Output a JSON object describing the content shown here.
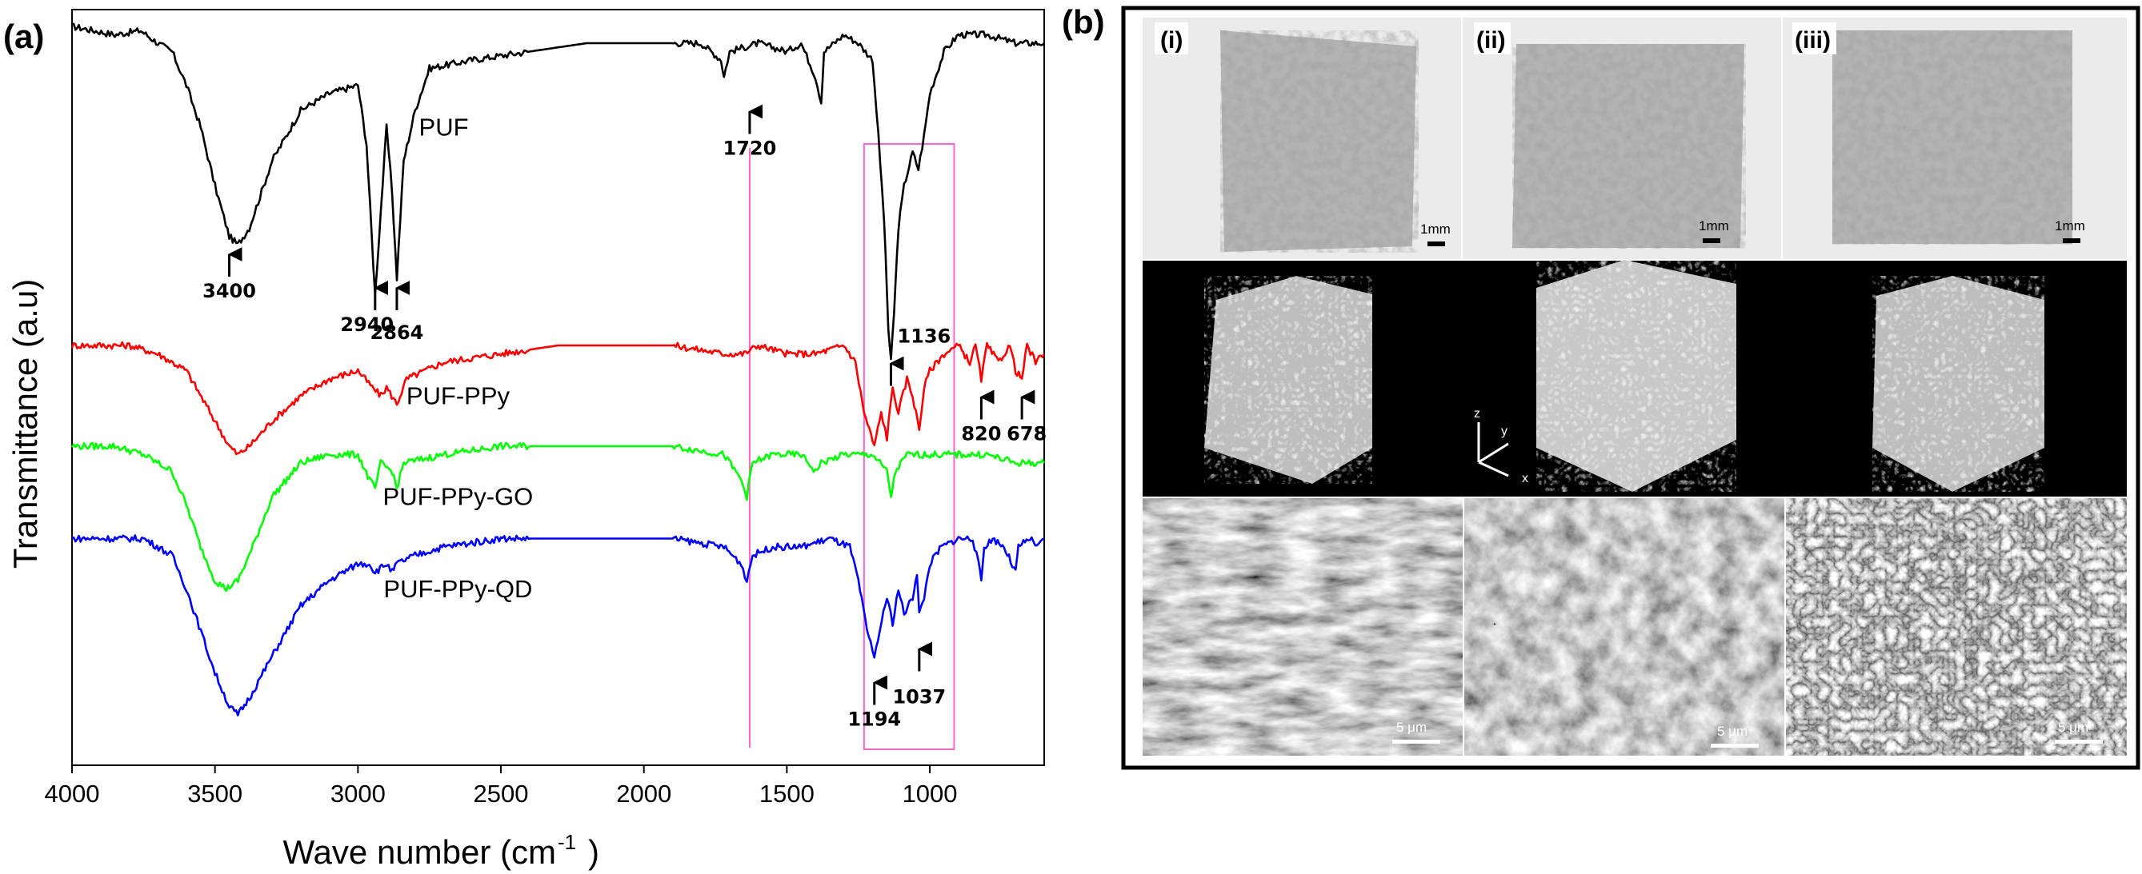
{
  "panel_a": {
    "label": "(a)",
    "chart_data": {
      "type": "line",
      "xlabel": "Wave number (cm",
      "xlabel_sup": "-1",
      "xlabel_close": ")",
      "ylabel": "Transmittance (a.u)",
      "xlim": [
        4000,
        600
      ],
      "x_ticks": [
        4000,
        3500,
        3000,
        2500,
        2000,
        1500,
        1000
      ],
      "y_ticks_shown": false,
      "series": [
        {
          "name": "PUF",
          "color": "#000000",
          "points": [
            [
              4000,
              98
            ],
            [
              3850,
              97
            ],
            [
              3760,
              97.5
            ],
            [
              3700,
              96
            ],
            [
              3650,
              95
            ],
            [
              3600,
              91
            ],
            [
              3550,
              86
            ],
            [
              3500,
              79
            ],
            [
              3450,
              73
            ],
            [
              3420,
              72
            ],
            [
              3380,
              74
            ],
            [
              3300,
              82
            ],
            [
              3200,
              88
            ],
            [
              3100,
              90
            ],
            [
              3000,
              91
            ],
            [
              2970,
              84
            ],
            [
              2940,
              66
            ],
            [
              2920,
              76
            ],
            [
              2900,
              86
            ],
            [
              2880,
              78
            ],
            [
              2864,
              68
            ],
            [
              2840,
              82
            ],
            [
              2800,
              88
            ],
            [
              2750,
              93
            ],
            [
              2600,
              94
            ],
            [
              2400,
              95
            ],
            [
              2200,
              96
            ],
            [
              2000,
              96
            ],
            [
              1800,
              96
            ],
            [
              1730,
              94
            ],
            [
              1720,
              92
            ],
            [
              1700,
              95
            ],
            [
              1600,
              96
            ],
            [
              1500,
              95
            ],
            [
              1450,
              96
            ],
            [
              1400,
              92
            ],
            [
              1380,
              89
            ],
            [
              1370,
              95
            ],
            [
              1300,
              97
            ],
            [
              1250,
              96
            ],
            [
              1200,
              94
            ],
            [
              1180,
              85
            ],
            [
              1160,
              75
            ],
            [
              1145,
              62
            ],
            [
              1136,
              58
            ],
            [
              1125,
              64
            ],
            [
              1110,
              74
            ],
            [
              1090,
              79
            ],
            [
              1060,
              83
            ],
            [
              1040,
              81
            ],
            [
              1020,
              85
            ],
            [
              1000,
              90
            ],
            [
              950,
              95
            ],
            [
              900,
              97
            ],
            [
              800,
              97
            ],
            [
              700,
              96
            ],
            [
              600,
              96
            ]
          ]
        },
        {
          "name": "PUF-PPy",
          "color": "#ff0000",
          "points": [
            [
              4000,
              60
            ],
            [
              3800,
              60
            ],
            [
              3700,
              59
            ],
            [
              3600,
              57
            ],
            [
              3500,
              51
            ],
            [
              3450,
              48
            ],
            [
              3420,
              47
            ],
            [
              3380,
              48
            ],
            [
              3300,
              51
            ],
            [
              3200,
              54
            ],
            [
              3100,
              56
            ],
            [
              3000,
              57
            ],
            [
              2950,
              55
            ],
            [
              2920,
              54
            ],
            [
              2900,
              55
            ],
            [
              2864,
              53
            ],
            [
              2830,
              56
            ],
            [
              2700,
              58
            ],
            [
              2500,
              59
            ],
            [
              2300,
              60
            ],
            [
              2100,
              60
            ],
            [
              1900,
              60
            ],
            [
              1720,
              59
            ],
            [
              1650,
              59
            ],
            [
              1600,
              60
            ],
            [
              1500,
              59
            ],
            [
              1400,
              59
            ],
            [
              1300,
              60
            ],
            [
              1260,
              58
            ],
            [
              1230,
              52
            ],
            [
              1194,
              48
            ],
            [
              1170,
              52
            ],
            [
              1150,
              49
            ],
            [
              1130,
              55
            ],
            [
              1110,
              52
            ],
            [
              1080,
              56
            ],
            [
              1060,
              54
            ],
            [
              1037,
              50
            ],
            [
              1020,
              55
            ],
            [
              1000,
              57
            ],
            [
              950,
              59
            ],
            [
              900,
              60
            ],
            [
              860,
              58
            ],
            [
              840,
              60
            ],
            [
              820,
              56
            ],
            [
              800,
              60
            ],
            [
              760,
              58
            ],
            [
              720,
              60
            ],
            [
              700,
              57
            ],
            [
              678,
              56
            ],
            [
              660,
              60
            ],
            [
              630,
              58
            ],
            [
              600,
              59
            ]
          ]
        },
        {
          "name": "PUF-PPy-GO",
          "color": "#00ff00",
          "points": [
            [
              4000,
              48
            ],
            [
              3850,
              48
            ],
            [
              3750,
              47
            ],
            [
              3650,
              45
            ],
            [
              3600,
              41
            ],
            [
              3550,
              36
            ],
            [
              3500,
              32
            ],
            [
              3460,
              31
            ],
            [
              3420,
              32
            ],
            [
              3380,
              35
            ],
            [
              3300,
              42
            ],
            [
              3200,
              46
            ],
            [
              3100,
              47
            ],
            [
              3000,
              47
            ],
            [
              2960,
              44
            ],
            [
              2940,
              43
            ],
            [
              2920,
              46
            ],
            [
              2880,
              45
            ],
            [
              2864,
              43
            ],
            [
              2840,
              46
            ],
            [
              2700,
              47
            ],
            [
              2500,
              48
            ],
            [
              2300,
              48
            ],
            [
              2100,
              48
            ],
            [
              1900,
              48
            ],
            [
              1720,
              47
            ],
            [
              1660,
              44
            ],
            [
              1640,
              42
            ],
            [
              1620,
              46
            ],
            [
              1550,
              47
            ],
            [
              1450,
              47
            ],
            [
              1400,
              45
            ],
            [
              1380,
              46
            ],
            [
              1300,
              47
            ],
            [
              1200,
              47
            ],
            [
              1150,
              45
            ],
            [
              1136,
              42
            ],
            [
              1120,
              45
            ],
            [
              1080,
              47
            ],
            [
              1000,
              47
            ],
            [
              900,
              47
            ],
            [
              800,
              47
            ],
            [
              700,
              46
            ],
            [
              600,
              46
            ]
          ]
        },
        {
          "name": "PUF-PPy-QD",
          "color": "#0000ff",
          "points": [
            [
              4000,
              37
            ],
            [
              3850,
              37
            ],
            [
              3750,
              37
            ],
            [
              3650,
              35
            ],
            [
              3600,
              31
            ],
            [
              3550,
              26
            ],
            [
              3500,
              21
            ],
            [
              3450,
              17
            ],
            [
              3420,
              16
            ],
            [
              3380,
              18
            ],
            [
              3300,
              23
            ],
            [
              3200,
              29
            ],
            [
              3100,
              32
            ],
            [
              3000,
              34
            ],
            [
              2960,
              34
            ],
            [
              2940,
              33
            ],
            [
              2900,
              34
            ],
            [
              2880,
              33
            ],
            [
              2864,
              34
            ],
            [
              2800,
              35
            ],
            [
              2700,
              36
            ],
            [
              2500,
              37
            ],
            [
              2300,
              37
            ],
            [
              2100,
              37
            ],
            [
              1900,
              37
            ],
            [
              1720,
              36
            ],
            [
              1660,
              34
            ],
            [
              1640,
              32
            ],
            [
              1620,
              35
            ],
            [
              1550,
              36
            ],
            [
              1450,
              36
            ],
            [
              1350,
              37
            ],
            [
              1280,
              36
            ],
            [
              1250,
              32
            ],
            [
              1220,
              26
            ],
            [
              1194,
              23
            ],
            [
              1175,
              26
            ],
            [
              1150,
              30
            ],
            [
              1130,
              27
            ],
            [
              1110,
              31
            ],
            [
              1090,
              28
            ],
            [
              1060,
              30
            ],
            [
              1045,
              33
            ],
            [
              1037,
              28
            ],
            [
              1020,
              30
            ],
            [
              1000,
              34
            ],
            [
              960,
              36
            ],
            [
              900,
              37
            ],
            [
              850,
              37
            ],
            [
              830,
              34
            ],
            [
              820,
              32
            ],
            [
              810,
              36
            ],
            [
              780,
              37
            ],
            [
              740,
              36
            ],
            [
              700,
              33
            ],
            [
              690,
              36
            ],
            [
              650,
              37
            ],
            [
              620,
              36
            ],
            [
              600,
              37
            ]
          ]
        }
      ],
      "series_labels": [
        "PUF",
        "PUF-PPy",
        "PUF-PPy-GO",
        "PUF-PPy-QD"
      ],
      "annotations": [
        {
          "text": "3400",
          "x": 3450
        },
        {
          "text": "2940",
          "x": 2940
        },
        {
          "text": "2864",
          "x": 2864
        },
        {
          "text": "1720",
          "x": 1630
        },
        {
          "text": "1136",
          "x": 1136
        },
        {
          "text": "820",
          "x": 820
        },
        {
          "text": "678",
          "x": 678
        },
        {
          "text": "1194",
          "x": 1194
        },
        {
          "text": "1037",
          "x": 1037
        }
      ],
      "highlight_box_x": [
        1230,
        915
      ],
      "highlight_line_x": 1630,
      "highlight_color": "#ff66cc"
    }
  },
  "panel_b": {
    "label": "(b)",
    "columns": [
      "(i)",
      "(ii)",
      "(iii)"
    ],
    "photo_scale": "1mm",
    "sem_scale": "5 μm",
    "axis_labels": {
      "z": "z",
      "y": "y",
      "x": "x"
    }
  }
}
